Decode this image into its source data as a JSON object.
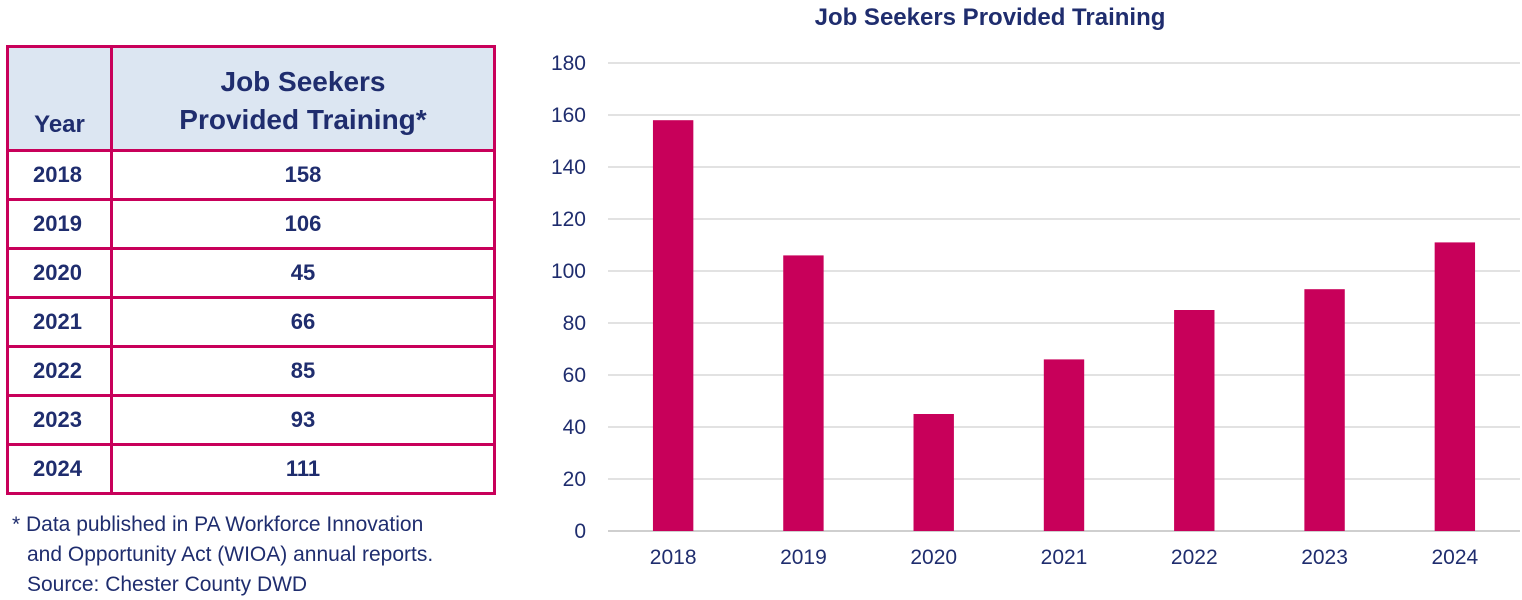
{
  "table": {
    "col_year_header": "Year",
    "col_value_header_line1": "Job Seekers",
    "col_value_header_line2": "Provided Training*",
    "rows": [
      {
        "year": "2018",
        "value": "158"
      },
      {
        "year": "2019",
        "value": "106"
      },
      {
        "year": "2020",
        "value": "45"
      },
      {
        "year": "2021",
        "value": "66"
      },
      {
        "year": "2022",
        "value": "85"
      },
      {
        "year": "2023",
        "value": "93"
      },
      {
        "year": "2024",
        "value": "111"
      }
    ]
  },
  "note": {
    "line1": "* Data published in PA Workforce Innovation",
    "line2": "and Opportunity Act (WIOA) annual reports.",
    "line3": "Source: Chester County DWD"
  },
  "chart_data": {
    "type": "bar",
    "title": "Job Seekers Provided Training",
    "categories": [
      "2018",
      "2019",
      "2020",
      "2021",
      "2022",
      "2023",
      "2024"
    ],
    "values": [
      158,
      106,
      45,
      66,
      85,
      93,
      111
    ],
    "ylim": [
      0,
      180
    ],
    "yticks": [
      0,
      20,
      40,
      60,
      80,
      100,
      120,
      140,
      160,
      180
    ],
    "grid": true,
    "bar_color": "#c8005a",
    "grid_color": "#d9d9d9",
    "label_color": "#1f2d6e"
  }
}
